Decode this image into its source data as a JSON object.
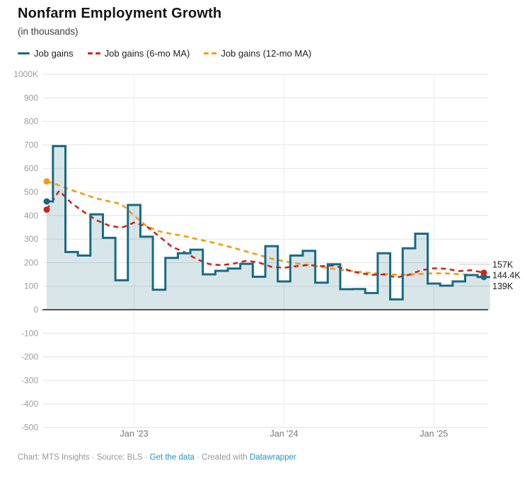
{
  "header": {
    "title": "Nonfarm Employment Growth",
    "subtitle": "(in thousands)"
  },
  "legend": [
    {
      "label": "Job gains",
      "color": "#186a84",
      "style": "solid"
    },
    {
      "label": "Job gains (6-mo MA)",
      "color": "#c8291d",
      "style": "dashed"
    },
    {
      "label": "Job gains (12-mo MA)",
      "color": "#f39c0b",
      "style": "dashed"
    }
  ],
  "chart_data": {
    "type": "line",
    "variant": "monthly step line with area fill plus two dashed moving-average lines",
    "title": "Nonfarm Employment Growth",
    "unit": "thousands of jobs",
    "months": [
      "Jun 2022",
      "Jul 2022",
      "Aug 2022",
      "Sep 2022",
      "Oct 2022",
      "Nov 2022",
      "Dec 2022",
      "Jan 2023",
      "Feb 2023",
      "Mar 2023",
      "Apr 2023",
      "May 2023",
      "Jun 2023",
      "Jul 2023",
      "Aug 2023",
      "Sep 2023",
      "Oct 2023",
      "Nov 2023",
      "Dec 2023",
      "Jan 2024",
      "Feb 2024",
      "Mar 2024",
      "Apr 2024",
      "May 2024",
      "Jun 2024",
      "Jul 2024",
      "Aug 2024",
      "Sep 2024",
      "Oct 2024",
      "Nov 2024",
      "Dec 2024",
      "Jan 2025",
      "Feb 2025",
      "Mar 2025",
      "Apr 2025",
      "May 2025"
    ],
    "series": [
      {
        "name": "Job gains",
        "type": "step",
        "color": "#186a84",
        "fill": "rgba(24,106,132,0.17)",
        "dot_start": true,
        "dot_end": true,
        "values": [
          460,
          695,
          245,
          230,
          405,
          305,
          125,
          445,
          310,
          85,
          220,
          240,
          255,
          150,
          165,
          175,
          195,
          140,
          270,
          120,
          230,
          250,
          115,
          193,
          87,
          88,
          71,
          240,
          44,
          261,
          323,
          111,
          102,
          120,
          147,
          139
        ]
      },
      {
        "name": "Job gains (6-mo MA)",
        "type": "dashed",
        "color": "#c8291d",
        "dot_start": true,
        "dot_end": true,
        "values": [
          425,
          505,
          452,
          414,
          380,
          357,
          348,
          370,
          354,
          312,
          268,
          245,
          215,
          194,
          189,
          196,
          208,
          200,
          182,
          178,
          185,
          190,
          185,
          188,
          170,
          156,
          148,
          150,
          137,
          148,
          168,
          176,
          174,
          164,
          168,
          157
        ]
      },
      {
        "name": "Job gains (12-mo MA)",
        "type": "dashed",
        "color": "#f39c0b",
        "dot_start": true,
        "dot_end": false,
        "values": [
          545,
          528,
          508,
          490,
          472,
          460,
          448,
          400,
          355,
          333,
          322,
          313,
          300,
          289,
          276,
          262,
          247,
          232,
          217,
          206,
          196,
          189,
          182,
          173,
          166,
          161,
          156,
          152,
          149,
          149,
          152,
          155,
          154,
          151,
          148,
          144.4
        ]
      }
    ],
    "ylim": [
      -500,
      1000
    ],
    "y_tick_labels": [
      "1000K",
      "900",
      "800",
      "700",
      "600",
      "500",
      "400",
      "300",
      "200",
      "100",
      "0",
      "-100",
      "-200",
      "-300",
      "-400",
      "-500"
    ],
    "x_ticks": [
      {
        "label": "Jan '23",
        "month_index": 7
      },
      {
        "label": "Jan '24",
        "month_index": 19
      },
      {
        "label": "Jan '25",
        "month_index": 31
      }
    ],
    "grid": true,
    "legend_position": "top",
    "end_labels": [
      {
        "text": "157K",
        "series_index": 1
      },
      {
        "text": "144.4K",
        "series_index": 2
      },
      {
        "text": "139K",
        "series_index": 0
      }
    ]
  },
  "footer": {
    "prefix": "Chart: MTS Insights · Source: BLS · ",
    "data_link": "Get the data",
    "middle": " · Created with ",
    "brand_link": "Datawrapper"
  }
}
